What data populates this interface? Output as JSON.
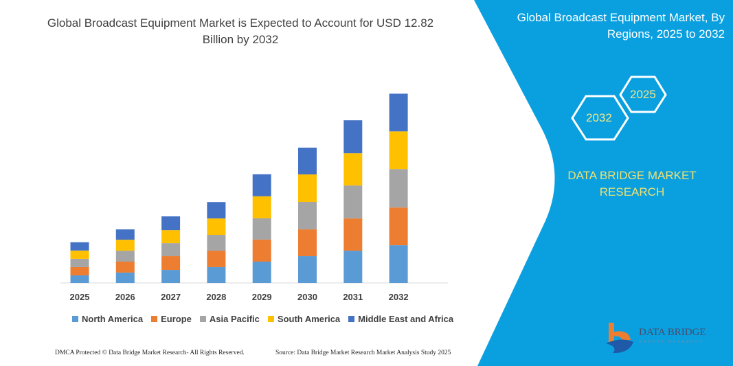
{
  "chart_data": {
    "type": "bar",
    "stacked": true,
    "title": "Global Broadcast Equipment Market is Expected to Account for USD 12.82 Billion by 2032",
    "categories": [
      "2025",
      "2026",
      "2027",
      "2028",
      "2029",
      "2030",
      "2031",
      "2032"
    ],
    "series": [
      {
        "name": "North America",
        "color": "#5b9bd5",
        "values": [
          0.51,
          0.7,
          0.88,
          1.07,
          1.44,
          1.81,
          2.18,
          2.55
        ]
      },
      {
        "name": "Europe",
        "color": "#ed7d31",
        "values": [
          0.56,
          0.74,
          0.93,
          1.11,
          1.49,
          1.81,
          2.18,
          2.55
        ]
      },
      {
        "name": "Asia Pacific",
        "color": "#a5a5a5",
        "values": [
          0.56,
          0.74,
          0.88,
          1.07,
          1.44,
          1.86,
          2.23,
          2.6
        ]
      },
      {
        "name": "South America",
        "color": "#ffc000",
        "values": [
          0.56,
          0.74,
          0.88,
          1.11,
          1.49,
          1.86,
          2.18,
          2.55
        ]
      },
      {
        "name": "Middle East and Africa",
        "color": "#4472c4",
        "values": [
          0.56,
          0.7,
          0.93,
          1.11,
          1.49,
          1.81,
          2.23,
          2.55
        ]
      }
    ],
    "xlabel": "",
    "ylabel": "",
    "ylim": [
      0,
      12.82
    ],
    "grid": false,
    "legend": "bottom"
  },
  "side": {
    "title": "Global Broadcast Equipment Market, By Regions, 2025 to 2032",
    "hex_left": "2032",
    "hex_right": "2025",
    "brand": "DATA BRIDGE MARKET RESEARCH",
    "logo": "DATA BRIDGE",
    "logo_sub": "MARKET RESEARCH",
    "panel_color": "#0aa0e0"
  },
  "footer": {
    "left": "DMCA Protected © Data Bridge Market Research-  All Rights Reserved.",
    "right": "Source: Data Bridge Market Research  Market Analysis Study 2025"
  }
}
